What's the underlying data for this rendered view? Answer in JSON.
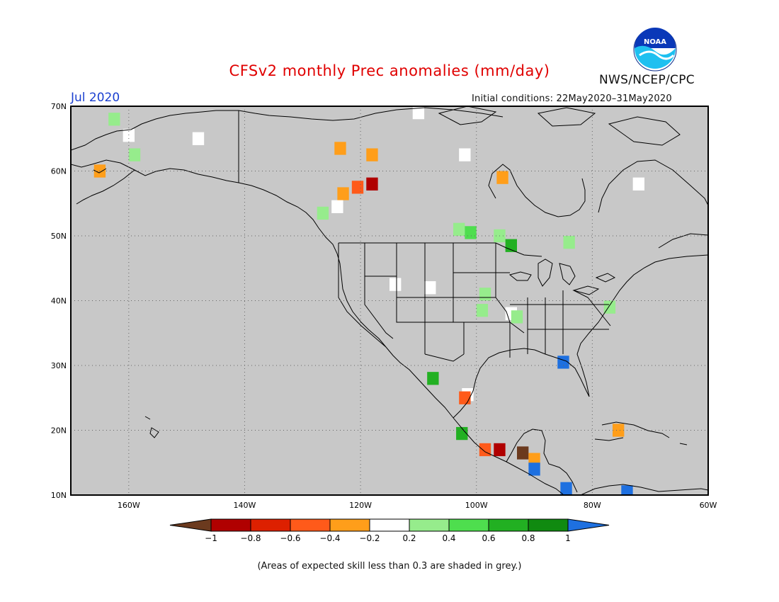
{
  "title": "CFSv2 monthly Prec anomalies (mm/day)",
  "agency": "NWS/NCEP/CPC",
  "logo_text": "NOAA",
  "month": "Jul 2020",
  "initial_conditions": "Initial conditions: 22May2020–31May2020",
  "footnote": "(Areas of expected skill less than 0.3 are shaded in grey.)",
  "colors": {
    "background": "#c8c8c8",
    "land_outline": "#000000",
    "title": "#e00000",
    "month": "#1a3fd0"
  },
  "map": {
    "lon_range": [
      -170,
      -60
    ],
    "lat_range": [
      10,
      70
    ],
    "lat_labels": [
      "70N",
      "60N",
      "50N",
      "40N",
      "30N",
      "20N",
      "10N"
    ],
    "lon_labels": [
      "160W",
      "140W",
      "120W",
      "100W",
      "80W",
      "60W"
    ],
    "grid": "dotted"
  },
  "colorbar": {
    "labels": [
      "−1",
      "−0.8",
      "−0.6",
      "−0.4",
      "−0.2",
      "0.2",
      "0.4",
      "0.6",
      "0.8",
      "1"
    ],
    "colors": [
      "#6b3a1e",
      "#b00000",
      "#dd2000",
      "#ff5a1a",
      "#ff9e1a",
      "#ffffff",
      "#96ec8c",
      "#4ede4e",
      "#22b022",
      "#108a10",
      "#1e70e0"
    ]
  },
  "anomaly_cells": [
    {
      "lon": -162.5,
      "lat": 68.0,
      "value": 0.3
    },
    {
      "lon": -160.0,
      "lat": 65.5,
      "value": 0.0
    },
    {
      "lon": -159.0,
      "lat": 62.5,
      "value": 0.3
    },
    {
      "lon": -165.0,
      "lat": 60.0,
      "value": -0.3
    },
    {
      "lon": -148.0,
      "lat": 65.0,
      "value": 0.0
    },
    {
      "lon": -123.5,
      "lat": 63.5,
      "value": -0.3
    },
    {
      "lon": -118.0,
      "lat": 62.5,
      "value": -0.3
    },
    {
      "lon": -110.0,
      "lat": 69.0,
      "value": 0.0
    },
    {
      "lon": -118.0,
      "lat": 58.0,
      "value": -0.9
    },
    {
      "lon": -120.5,
      "lat": 57.5,
      "value": -0.6
    },
    {
      "lon": -123.0,
      "lat": 56.5,
      "value": -0.3
    },
    {
      "lon": -124.0,
      "lat": 54.5,
      "value": 0.0
    },
    {
      "lon": -126.5,
      "lat": 53.5,
      "value": 0.3
    },
    {
      "lon": -103.0,
      "lat": 51.0,
      "value": 0.3
    },
    {
      "lon": -101.0,
      "lat": 50.5,
      "value": 0.5
    },
    {
      "lon": -96.0,
      "lat": 50.0,
      "value": 0.3
    },
    {
      "lon": -94.0,
      "lat": 48.5,
      "value": 0.7
    },
    {
      "lon": -84.0,
      "lat": 49.0,
      "value": 0.3
    },
    {
      "lon": -95.5,
      "lat": 59.0,
      "value": -0.3
    },
    {
      "lon": -102.0,
      "lat": 62.5,
      "value": 0.0
    },
    {
      "lon": -72.0,
      "lat": 58.0,
      "value": 0.0
    },
    {
      "lon": -114.0,
      "lat": 42.5,
      "value": 0.0
    },
    {
      "lon": -108.0,
      "lat": 42.0,
      "value": 0.0
    },
    {
      "lon": -98.5,
      "lat": 41.0,
      "value": 0.4
    },
    {
      "lon": -99.0,
      "lat": 38.5,
      "value": 0.3
    },
    {
      "lon": -94.0,
      "lat": 38.0,
      "value": 0.0
    },
    {
      "lon": -93.0,
      "lat": 37.5,
      "value": 0.4
    },
    {
      "lon": -77.0,
      "lat": 39.0,
      "value": 0.4
    },
    {
      "lon": -85.0,
      "lat": 30.5,
      "value": 1.0
    },
    {
      "lon": -101.5,
      "lat": 25.5,
      "value": 0.0
    },
    {
      "lon": -102.0,
      "lat": 25.0,
      "value": -0.6
    },
    {
      "lon": -98.5,
      "lat": 17.0,
      "value": -0.6
    },
    {
      "lon": -96.0,
      "lat": 17.0,
      "value": -0.9
    },
    {
      "lon": -92.0,
      "lat": 16.5,
      "value": -1.0
    },
    {
      "lon": -90.0,
      "lat": 15.5,
      "value": -0.3
    },
    {
      "lon": -102.5,
      "lat": 19.5,
      "value": 0.7
    },
    {
      "lon": -90.0,
      "lat": 14.0,
      "value": 1.0
    },
    {
      "lon": -84.5,
      "lat": 11.0,
      "value": 1.0
    },
    {
      "lon": -74.0,
      "lat": 10.5,
      "value": 1.0
    },
    {
      "lon": -75.5,
      "lat": 20.0,
      "value": -0.3
    },
    {
      "lon": -107.5,
      "lat": 28.0,
      "value": 0.7
    }
  ]
}
